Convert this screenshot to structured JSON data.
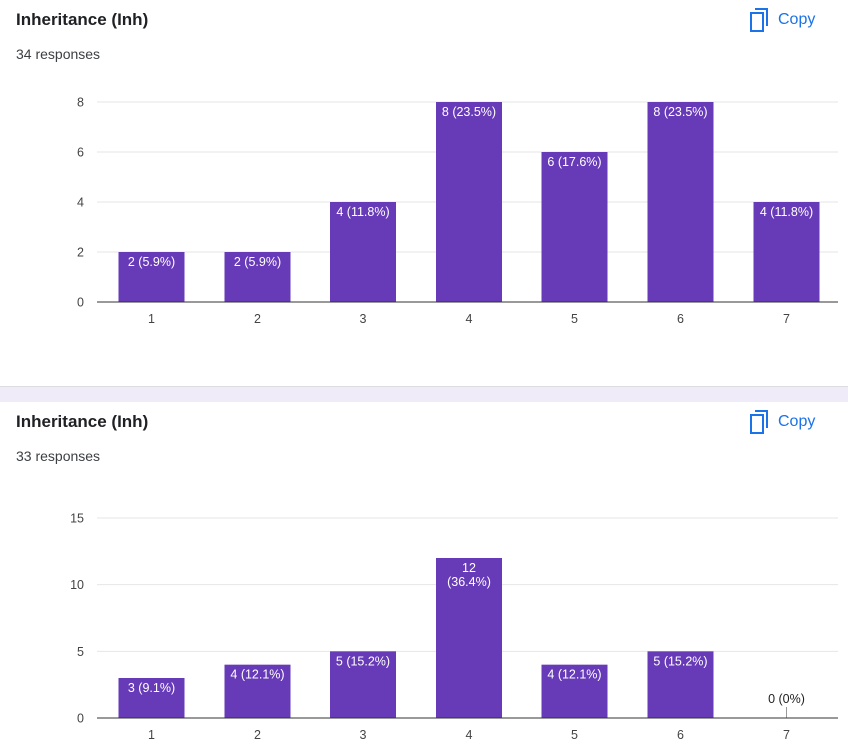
{
  "colors": {
    "bar": "#673ab7",
    "accent": "#1a73e8",
    "separator": "#f0ebf8"
  },
  "cards": [
    {
      "title": "Inheritance (Inh)",
      "responses": "34 responses",
      "copy_label": "Copy",
      "copy_icon": "copy-icon"
    },
    {
      "title": "Inheritance (Inh)",
      "responses": "33 responses",
      "copy_label": "Copy",
      "copy_icon": "copy-icon"
    }
  ],
  "chart_data": [
    {
      "type": "bar",
      "title": "Inheritance (Inh)",
      "xlabel": "",
      "ylabel": "",
      "categories": [
        "1",
        "2",
        "3",
        "4",
        "5",
        "6",
        "7"
      ],
      "values": [
        2,
        2,
        4,
        8,
        6,
        8,
        4
      ],
      "data_labels": [
        [
          "2 (5.9%)"
        ],
        [
          "2 (5.9%)"
        ],
        [
          "4 (11.8%)"
        ],
        [
          "8 (23.5%)"
        ],
        [
          "6 (17.6%)"
        ],
        [
          "8 (23.5%)"
        ],
        [
          "4 (11.8%)"
        ]
      ],
      "ylim": [
        0,
        8
      ],
      "yticks": [
        0,
        2,
        4,
        6,
        8
      ],
      "grid": true
    },
    {
      "type": "bar",
      "title": "Inheritance (Inh)",
      "xlabel": "",
      "ylabel": "",
      "categories": [
        "1",
        "2",
        "3",
        "4",
        "5",
        "6",
        "7"
      ],
      "values": [
        3,
        4,
        5,
        12,
        4,
        5,
        0
      ],
      "data_labels": [
        [
          "3 (9.1%)"
        ],
        [
          "4 (12.1%)"
        ],
        [
          "5 (15.2%)"
        ],
        [
          "12",
          "(36.4%)"
        ],
        [
          "4 (12.1%)"
        ],
        [
          "5 (15.2%)"
        ],
        [
          "0 (0%)"
        ]
      ],
      "ylim": [
        0,
        15
      ],
      "yticks": [
        0,
        5,
        10,
        15
      ],
      "grid": true
    }
  ]
}
